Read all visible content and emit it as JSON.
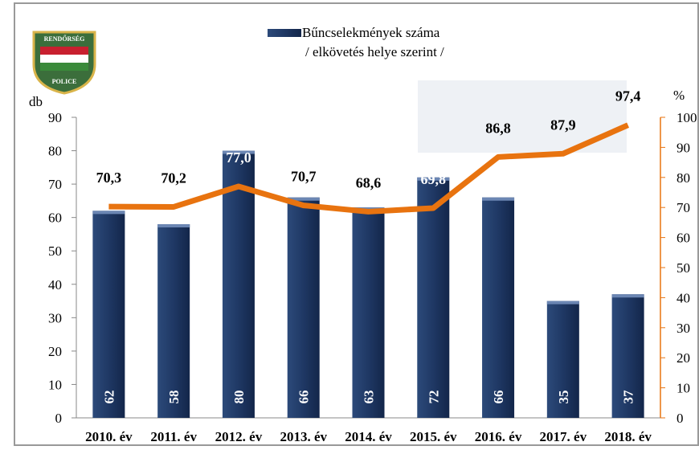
{
  "logo": {
    "top": "RENDŐRSÉG",
    "bottom": "POLICE"
  },
  "chart_data": {
    "type": "bar_line",
    "categories": [
      "2010. év",
      "2011. év",
      "2012. év",
      "2013. év",
      "2014. év",
      "2015. év",
      "2016. év",
      "2017. év",
      "2018. év"
    ],
    "series": [
      {
        "name": "Bűncselekmények száma",
        "type": "bar",
        "color": "#1f3864",
        "values": [
          62,
          58,
          80,
          66,
          63,
          72,
          66,
          35,
          37
        ]
      },
      {
        "type": "line",
        "axis": "y2",
        "color": "#e8730f",
        "values": [
          70.3,
          70.2,
          77.0,
          70.7,
          68.6,
          69.8,
          86.8,
          87.9,
          97.4
        ],
        "value_labels": [
          "70,3",
          "70,2",
          "77,0",
          "70,7",
          "68,6",
          "69,8",
          "86,8",
          "87,9",
          "97,4"
        ]
      }
    ],
    "legend_note": "/ elkövetés helye szerint /",
    "y_label": "db",
    "y2_label": "%",
    "ylim": [
      0,
      90
    ],
    "yticks": [
      0,
      10,
      20,
      30,
      40,
      50,
      60,
      70,
      80,
      90
    ],
    "y2lim": [
      0,
      100
    ],
    "y2ticks": [
      0,
      10,
      20,
      30,
      40,
      50,
      60,
      70,
      80,
      90,
      100
    ]
  }
}
